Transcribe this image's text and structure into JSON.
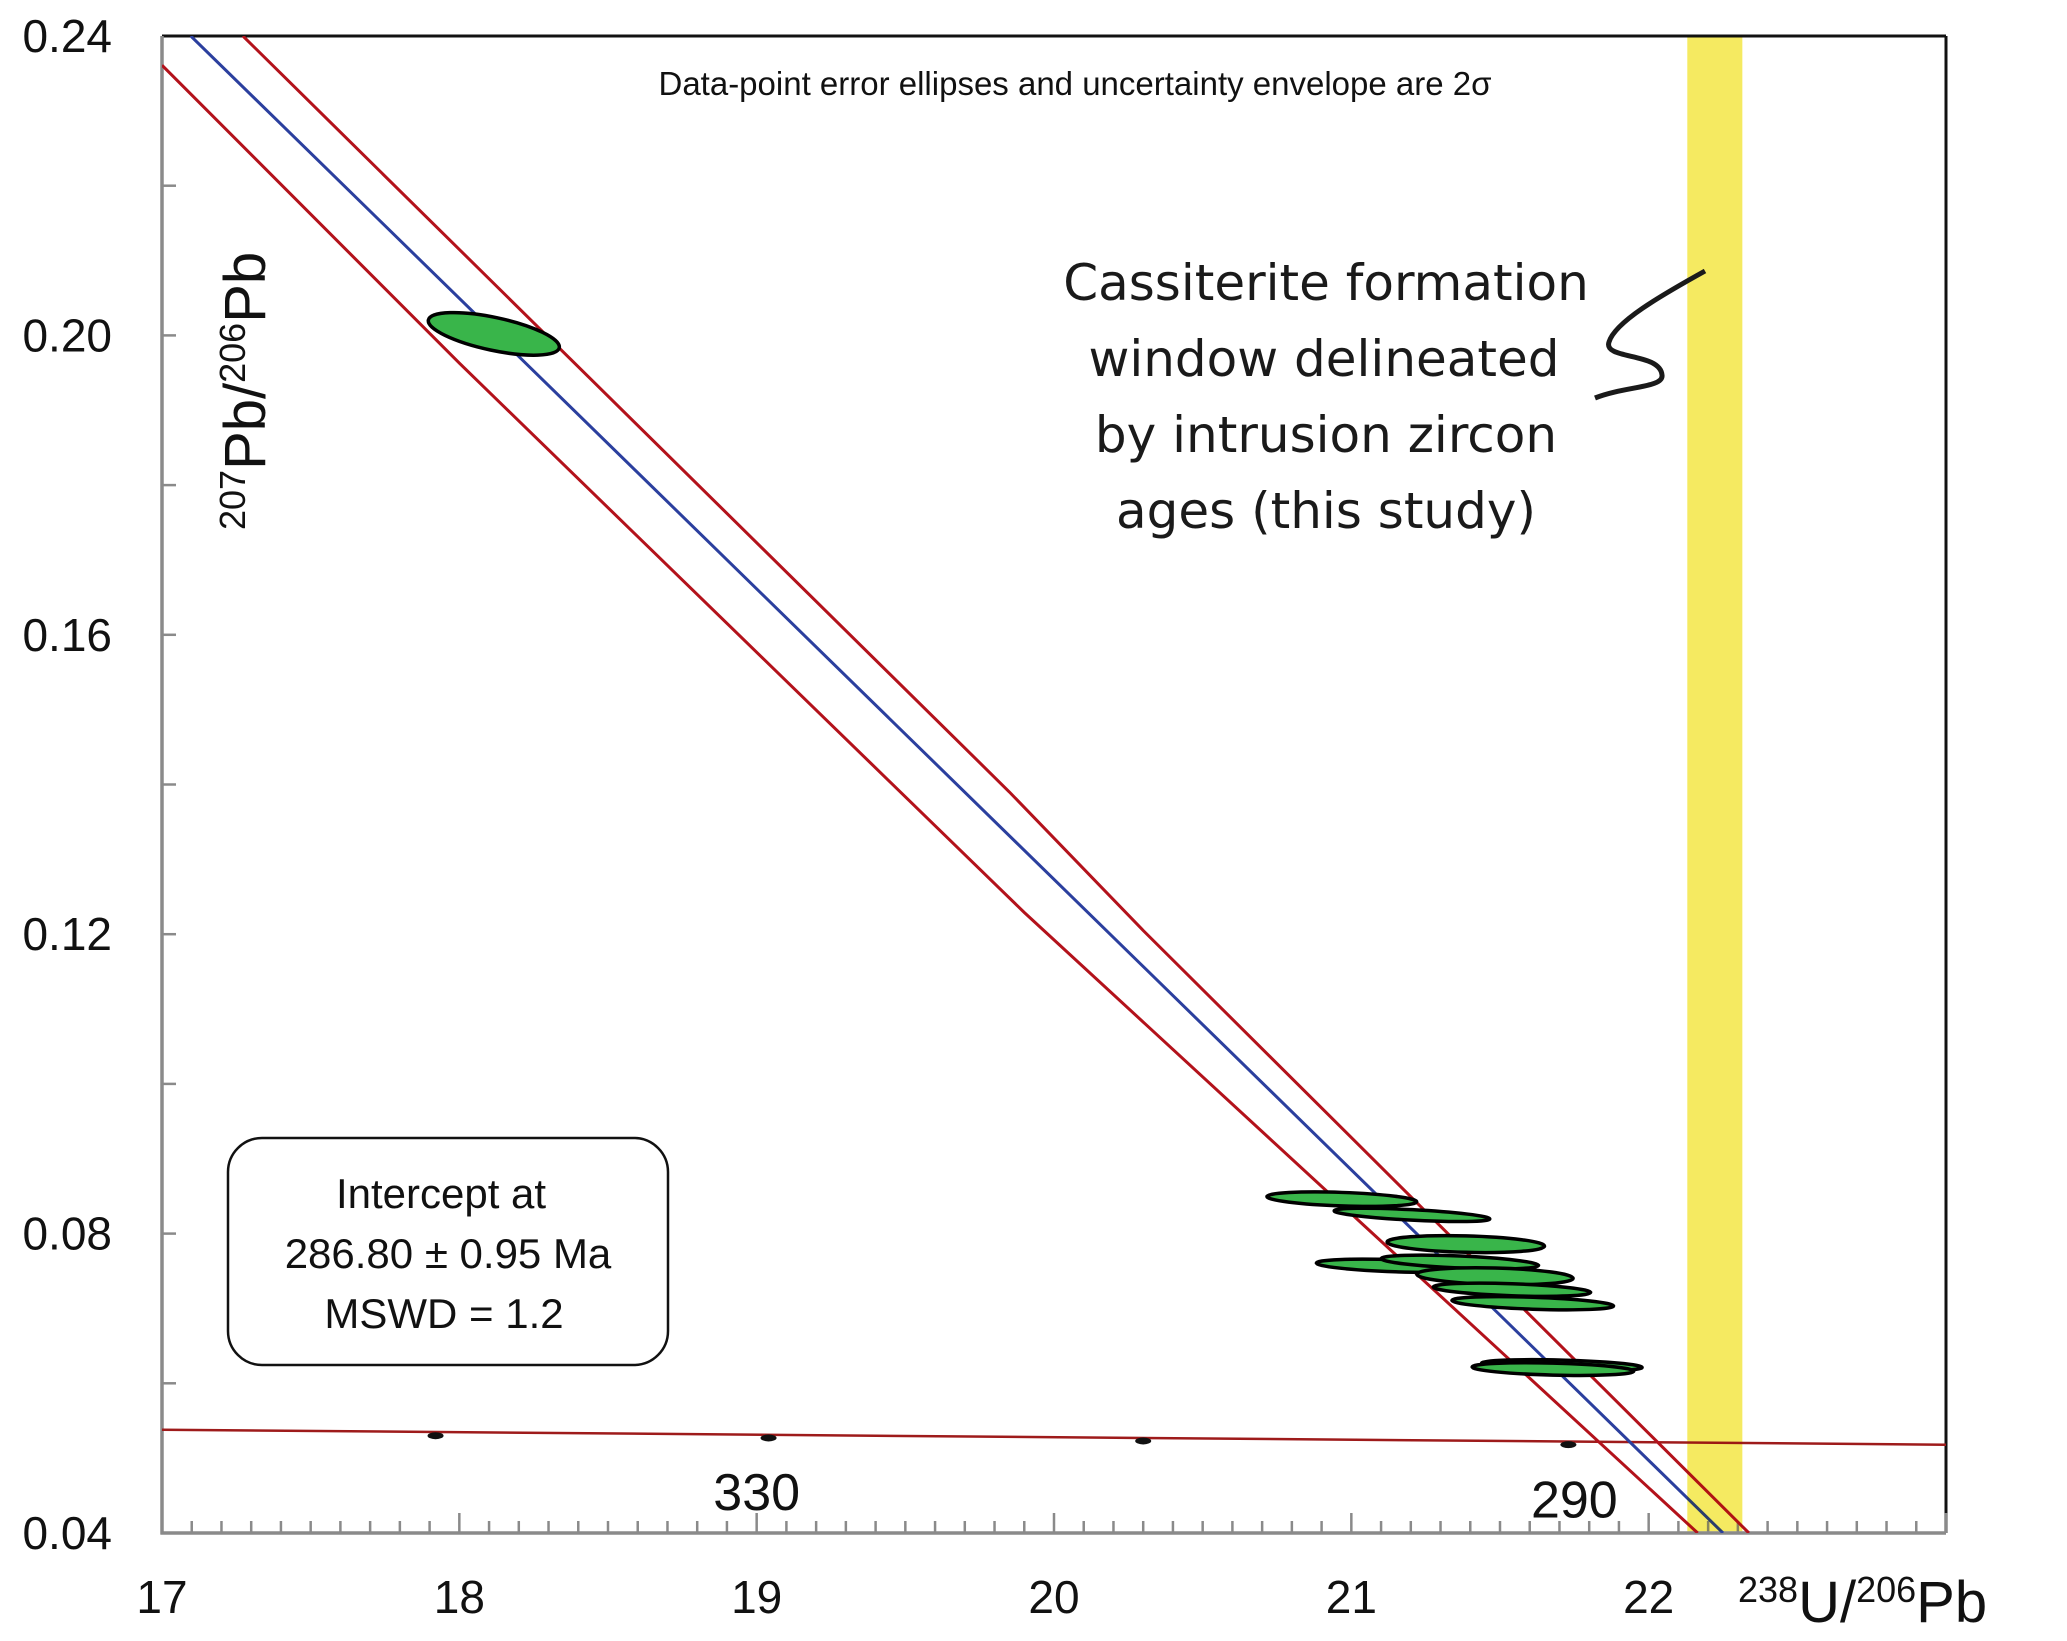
{
  "chart_data": {
    "type": "scatter",
    "subtype": "Tera-Wasserburg concordia diagram with error ellipses",
    "xlabel": {
      "sup1": "238",
      "base1": "U/",
      "sup2": "206",
      "base2": "Pb"
    },
    "ylabel": {
      "sup1": "207",
      "base1": "Pb/",
      "sup2": "206",
      "base2": "Pb"
    },
    "xlim": [
      17,
      23
    ],
    "ylim": [
      0.04,
      0.24
    ],
    "x_ticks": [
      {
        "value": 17,
        "label": "17"
      },
      {
        "value": 18,
        "label": "18"
      },
      {
        "value": 19,
        "label": "19"
      },
      {
        "value": 20,
        "label": "20"
      },
      {
        "value": 21,
        "label": "21"
      },
      {
        "value": 22,
        "label": "22"
      }
    ],
    "x_minor_step": 0.1,
    "y_ticks": [
      {
        "value": 0.24,
        "label": "0.24"
      },
      {
        "value": 0.2,
        "label": "0.20"
      },
      {
        "value": 0.16,
        "label": "0.16"
      },
      {
        "value": 0.12,
        "label": "0.12"
      },
      {
        "value": 0.08,
        "label": "0.08"
      },
      {
        "value": 0.04,
        "label": "0.04"
      }
    ],
    "y_minor_step": 0.02,
    "grid": false,
    "note": "Data-point error ellipses and uncertainty envelope are 2σ",
    "ellipses": [
      {
        "x": 18.116,
        "y": 0.2002,
        "rx": 0.225,
        "ry": 0.0022,
        "angle": 12
      },
      {
        "x": 20.968,
        "y": 0.0846,
        "rx": 0.252,
        "ry": 0.0009,
        "angle": 2
      },
      {
        "x": 21.204,
        "y": 0.0825,
        "rx": 0.262,
        "ry": 0.0007,
        "angle": 3
      },
      {
        "x": 21.385,
        "y": 0.0786,
        "rx": 0.265,
        "ry": 0.0011,
        "angle": 1.5
      },
      {
        "x": 21.147,
        "y": 0.0757,
        "rx": 0.265,
        "ry": 0.0008,
        "angle": 2
      },
      {
        "x": 21.365,
        "y": 0.0762,
        "rx": 0.265,
        "ry": 0.0008,
        "angle": 2.5
      },
      {
        "x": 21.483,
        "y": 0.0743,
        "rx": 0.263,
        "ry": 0.0011,
        "angle": 1.5
      },
      {
        "x": 21.54,
        "y": 0.0725,
        "rx": 0.265,
        "ry": 0.0008,
        "angle": 2
      },
      {
        "x": 21.61,
        "y": 0.0707,
        "rx": 0.272,
        "ry": 0.0008,
        "angle": 2
      },
      {
        "x": 21.708,
        "y": 0.0624,
        "rx": 0.27,
        "ry": 0.0007,
        "angle": 1.5
      },
      {
        "x": 21.678,
        "y": 0.0619,
        "rx": 0.272,
        "ry": 0.0008,
        "angle": 1.5
      }
    ],
    "discordia": {
      "points": [
        [
          17.097,
          0.24
        ],
        [
          22.25,
          0.04
        ]
      ],
      "color": "#2b3f9e"
    },
    "envelope": [
      {
        "name": "upper",
        "points": [
          [
            17.272,
            0.24
          ],
          [
            19.85,
            0.139
          ],
          [
            20.3,
            0.1205
          ],
          [
            22.337,
            0.04
          ]
        ],
        "color": "#b3121b"
      },
      {
        "name": "lower",
        "points": [
          [
            17.0,
            0.2361
          ],
          [
            18.0,
            0.1963
          ],
          [
            19.9,
            0.1229
          ],
          [
            22.165,
            0.04
          ]
        ],
        "color": "#b3121b"
      }
    ],
    "concordia": {
      "points": [
        [
          17.0,
          0.0538
        ],
        [
          23.0,
          0.0518
        ]
      ],
      "color": "#9e1b1b",
      "age_markers": [
        {
          "x": 17.92,
          "y": 0.0534
        },
        {
          "x": 19.04,
          "y": 0.0531
        },
        {
          "x": 20.3,
          "y": 0.0527
        },
        {
          "x": 21.73,
          "y": 0.0522
        }
      ],
      "age_labels": [
        {
          "text": "330",
          "x": 19.0,
          "y": 0.0455
        },
        {
          "text": "290",
          "x": 21.75,
          "y": 0.0445
        }
      ]
    },
    "window_band": {
      "x_from": 22.13,
      "x_to": 22.315,
      "color": "#f7ef6a"
    },
    "intercept_box": {
      "lines": [
        "Intercept at",
        "286.80 ± 0.95 Ma",
        "MSWD = 1.2"
      ]
    },
    "callout": {
      "lines": [
        "Cassiterite formation",
        "window delineated",
        "by intrusion zircon",
        "ages (this study)"
      ]
    },
    "colors": {
      "ellipse_fill": "#39b54a",
      "ellipse_stroke": "#000000",
      "axis_left_bottom": "#8a8a8a",
      "axis_top_right": "#111111"
    }
  }
}
